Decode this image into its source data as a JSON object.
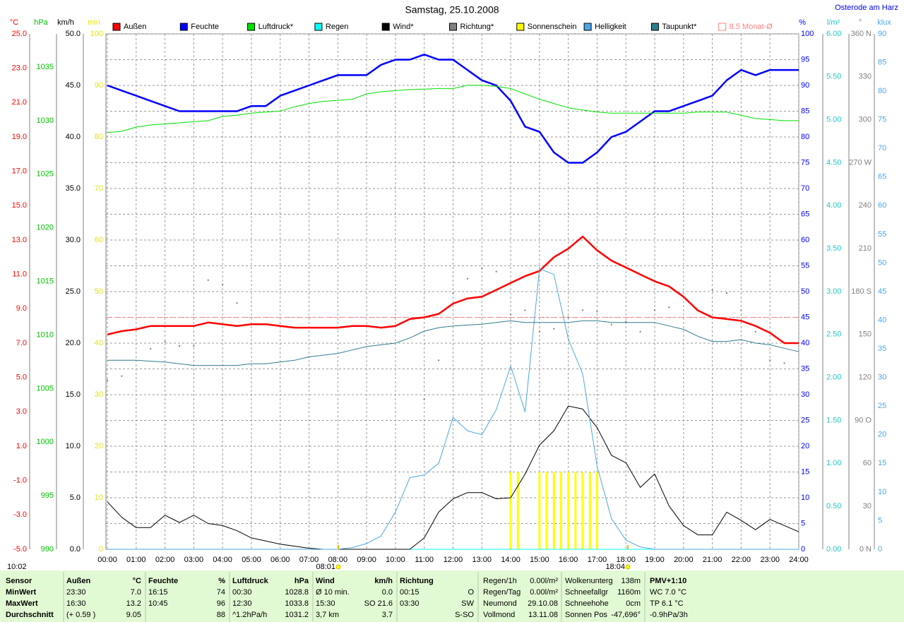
{
  "chart_data": {
    "type": "line",
    "title": "Samstag, 25.10.2008",
    "location": "Osterode am Harz",
    "day_length": "10:02",
    "x": [
      0,
      0.5,
      1,
      1.5,
      2,
      2.5,
      3,
      3.5,
      4,
      4.5,
      5,
      5.5,
      6,
      6.5,
      7,
      7.5,
      8,
      8.5,
      9,
      9.5,
      10,
      10.5,
      11,
      11.5,
      12,
      12.5,
      13,
      13.5,
      14,
      14.5,
      15,
      15.5,
      16,
      16.5,
      17,
      17.5,
      18,
      18.5,
      19,
      19.5,
      20,
      20.5,
      21,
      21.5,
      22,
      22.5,
      23,
      23.5,
      24
    ],
    "xlim": [
      0,
      24
    ],
    "xgrid": true,
    "xticks": [
      {
        "value": 0,
        "label": "00:00"
      },
      {
        "value": 1,
        "label": "01:00"
      },
      {
        "value": 2,
        "label": "02:00"
      },
      {
        "value": 3,
        "label": "03:00"
      },
      {
        "value": 4,
        "label": "04:00"
      },
      {
        "value": 5,
        "label": "05:00"
      },
      {
        "value": 6,
        "label": "06:00"
      },
      {
        "value": 7,
        "label": "07:00"
      },
      {
        "value": 8,
        "label": "08:00"
      },
      {
        "value": 9,
        "label": "09:00"
      },
      {
        "value": 10,
        "label": "10:00"
      },
      {
        "value": 11,
        "label": "11:00"
      },
      {
        "value": 12,
        "label": "12:00"
      },
      {
        "value": 13,
        "label": "13:00"
      },
      {
        "value": 14,
        "label": "14:00"
      },
      {
        "value": 15,
        "label": "15:00"
      },
      {
        "value": 16,
        "label": "16:00"
      },
      {
        "value": 17,
        "label": "17:00"
      },
      {
        "value": 18,
        "label": "18:00"
      },
      {
        "value": 19,
        "label": "19:00"
      },
      {
        "value": 20,
        "label": "20:00"
      },
      {
        "value": 21,
        "label": "21:00"
      },
      {
        "value": 22,
        "label": "22:00"
      },
      {
        "value": 23,
        "label": "23:00"
      },
      {
        "value": 24,
        "label": "24:00"
      }
    ],
    "axes": [
      {
        "unit": "°C",
        "color": "#ff0000",
        "lim": [
          -5,
          25
        ],
        "ticks": [
          {
            "value": -5,
            "label": "-5.0"
          },
          {
            "value": -3,
            "label": "-3.0"
          },
          {
            "value": -1,
            "label": "-1.0"
          },
          {
            "value": 1,
            "label": "1.0"
          },
          {
            "value": 3,
            "label": "3.0"
          },
          {
            "value": 5,
            "label": "5.0"
          },
          {
            "value": 7,
            "label": "7.0"
          },
          {
            "value": 9,
            "label": "9.0"
          },
          {
            "value": 11,
            "label": "11.0"
          },
          {
            "value": 13,
            "label": "13.0"
          },
          {
            "value": 15,
            "label": "15.0"
          },
          {
            "value": 17,
            "label": "17.0"
          },
          {
            "value": 19,
            "label": "19.0"
          },
          {
            "value": 21,
            "label": "21.0"
          },
          {
            "value": 23,
            "label": "23.0"
          },
          {
            "value": 25,
            "label": "25.0"
          }
        ]
      },
      {
        "unit": "hPa",
        "color": "#00c000",
        "lim": [
          990,
          1038.1
        ],
        "ticks": [
          990,
          995,
          1000,
          1005,
          1010,
          1015,
          1020,
          1025,
          1030,
          1035
        ]
      },
      {
        "unit": "km/h",
        "color": "#000000",
        "lim": [
          0,
          50
        ],
        "ticks": [
          {
            "value": 0,
            "label": "0.0"
          },
          {
            "value": 5,
            "label": "5.0"
          },
          {
            "value": 10,
            "label": "10.0"
          },
          {
            "value": 15,
            "label": "15.0"
          },
          {
            "value": 20,
            "label": "20.0"
          },
          {
            "value": 25,
            "label": "25.0"
          },
          {
            "value": 30,
            "label": "30.0"
          },
          {
            "value": 35,
            "label": "35.0"
          },
          {
            "value": 40,
            "label": "40.0"
          },
          {
            "value": 45,
            "label": "45.0"
          },
          {
            "value": 50,
            "label": "50.0"
          }
        ]
      },
      {
        "unit": "min",
        "color": "#e6e600",
        "lim": [
          0,
          100
        ],
        "ticks": [
          0,
          10,
          20,
          30,
          40,
          50,
          60,
          70,
          80,
          90,
          100
        ]
      },
      {
        "unit": "%",
        "color": "#0000ff",
        "lim": [
          0,
          100
        ],
        "grid": true,
        "ticks": [
          0,
          5,
          10,
          15,
          20,
          25,
          30,
          35,
          40,
          45,
          50,
          55,
          60,
          65,
          70,
          75,
          80,
          85,
          90,
          95,
          100
        ]
      },
      {
        "unit": "l/m²",
        "color": "#20c8c8",
        "lim": [
          0,
          6
        ],
        "ticks": [
          {
            "value": 0,
            "label": "0.00"
          },
          {
            "value": 0.5,
            "label": "0.50"
          },
          {
            "value": 1,
            "label": "1.00"
          },
          {
            "value": 1.5,
            "label": "1.50"
          },
          {
            "value": 2,
            "label": "2.00"
          },
          {
            "value": 2.5,
            "label": "2.50"
          },
          {
            "value": 3,
            "label": "3.00"
          },
          {
            "value": 3.5,
            "label": "3.50"
          },
          {
            "value": 4,
            "label": "4.00"
          },
          {
            "value": 4.5,
            "label": "4.50"
          },
          {
            "value": 5,
            "label": "5.00"
          },
          {
            "value": 5.5,
            "label": "5.50"
          },
          {
            "value": 6,
            "label": "6.00"
          }
        ]
      },
      {
        "unit": "°",
        "color": "#808080",
        "lim": [
          0,
          360
        ],
        "ticks": [
          {
            "value": 0,
            "label": "0 N"
          },
          30,
          60,
          {
            "value": 90,
            "label": "90 O"
          },
          120,
          150,
          {
            "value": 180,
            "label": "180 S"
          },
          210,
          240,
          {
            "value": 270,
            "label": "270 W"
          },
          300,
          330,
          {
            "value": 360,
            "label": "360 N"
          }
        ]
      },
      {
        "unit": "klux",
        "color": "#4da6e8",
        "lim": [
          0,
          90
        ],
        "ticks": [
          0,
          5,
          10,
          15,
          20,
          25,
          30,
          35,
          40,
          45,
          50,
          55,
          60,
          65,
          70,
          75,
          80,
          85,
          90
        ]
      }
    ],
    "series": [
      {
        "name": "Außen",
        "type": "line",
        "axis": "°C",
        "color": "#ff0000",
        "width": 2.5,
        "values": [
          7.5,
          7.7,
          7.8,
          8.0,
          8.0,
          8.0,
          8.0,
          8.2,
          8.1,
          8.0,
          8.1,
          8.1,
          8.0,
          7.9,
          7.9,
          7.9,
          7.9,
          8.0,
          8.0,
          7.9,
          8.0,
          8.4,
          8.5,
          8.7,
          9.3,
          9.6,
          9.7,
          10.1,
          10.5,
          10.9,
          11.2,
          12.0,
          12.5,
          13.2,
          12.4,
          11.8,
          11.4,
          11.0,
          10.6,
          10.3,
          9.7,
          8.9,
          8.5,
          8.4,
          8.3,
          8.0,
          7.6,
          7.0,
          7.0
        ]
      },
      {
        "name": "Feuchte",
        "type": "line",
        "axis": "%",
        "color": "#0000ff",
        "width": 2.5,
        "values": [
          90,
          89,
          88,
          87,
          86,
          85,
          85,
          85,
          85,
          85,
          86,
          86,
          88,
          89,
          90,
          91,
          92,
          92,
          92,
          94,
          95,
          95,
          96,
          95,
          95,
          93,
          91,
          90,
          87,
          82,
          81,
          77,
          75,
          75,
          77,
          80,
          81,
          83,
          85,
          85,
          86,
          87,
          88,
          91,
          93,
          92,
          93,
          93,
          93
        ]
      },
      {
        "name": "Luftdruck*",
        "type": "line",
        "axis": "hPa",
        "color": "#00e000",
        "width": 1,
        "values": [
          1028.9,
          1029.0,
          1029.4,
          1029.6,
          1029.7,
          1029.8,
          1029.9,
          1030.0,
          1030.4,
          1030.5,
          1030.7,
          1030.8,
          1030.9,
          1031.3,
          1031.6,
          1031.8,
          1031.9,
          1032.0,
          1032.5,
          1032.7,
          1032.8,
          1032.9,
          1032.95,
          1033.0,
          1033.0,
          1033.3,
          1033.3,
          1033.2,
          1033.0,
          1032.5,
          1032.0,
          1031.6,
          1031.2,
          1031.0,
          1030.8,
          1030.7,
          1030.7,
          1030.7,
          1030.7,
          1030.7,
          1030.7,
          1030.8,
          1030.8,
          1030.8,
          1030.5,
          1030.2,
          1030.1,
          1030.0,
          1030.0
        ]
      },
      {
        "name": "Regen",
        "type": "line",
        "axis": "l/m²",
        "color": "#00ffff",
        "width": 1,
        "values": [
          0,
          0,
          0,
          0,
          0,
          0,
          0,
          0,
          0,
          0,
          0,
          0,
          0,
          0,
          0,
          0,
          0,
          0,
          0,
          0,
          0,
          0,
          0,
          0,
          0,
          0,
          0,
          0,
          0,
          0,
          0,
          0,
          0,
          0,
          0,
          0,
          0,
          0,
          0,
          0,
          0,
          0,
          0,
          0,
          0,
          0,
          0,
          0,
          0
        ]
      },
      {
        "name": "Wind*",
        "type": "line",
        "axis": "km/h",
        "color": "#000000",
        "width": 1,
        "values": [
          4.6,
          3.1,
          2.1,
          2.1,
          3.3,
          2.6,
          3.3,
          2.5,
          2.3,
          1.8,
          1.1,
          0.8,
          0.5,
          0.3,
          0.1,
          0,
          0,
          0,
          0,
          0,
          0,
          0,
          1.1,
          3.6,
          4.9,
          5.5,
          5.5,
          4.9,
          5.0,
          7.3,
          10.1,
          11.5,
          13.9,
          13.6,
          11.8,
          9.1,
          8.4,
          6.0,
          7.3,
          4.2,
          2.3,
          1.4,
          1.4,
          3.6,
          2.8,
          1.9,
          2.9,
          2.3,
          1.7
        ]
      },
      {
        "name": "Richtung*",
        "type": "dots",
        "axis": "°",
        "color": "#808080",
        "values": [
          118,
          121,
          null,
          140,
          145,
          142,
          142,
          188,
          185,
          172,
          null,
          null,
          null,
          null,
          null,
          null,
          null,
          null,
          null,
          null,
          null,
          null,
          105,
          132,
          179,
          189,
          196,
          194,
          164,
          167,
          152,
          154,
          162,
          167,
          166,
          157,
          159,
          152,
          167,
          169,
          null,
          null,
          181,
          179,
          167,
          152,
          132,
          130,
          null
        ]
      },
      {
        "name": "Sonnenschein",
        "type": "bars",
        "axis": "min",
        "color": "#ffff00",
        "x": [
          14,
          14.25,
          15,
          15.25,
          15.5,
          15.75,
          16,
          16.25,
          16.5,
          16.75,
          17
        ],
        "values": [
          15,
          15,
          15,
          15,
          15,
          15,
          15,
          15,
          15,
          15,
          15
        ]
      },
      {
        "name": "Helligkeit",
        "type": "line",
        "axis": "klux",
        "color": "#4da6e8",
        "width": 1,
        "values": [
          0,
          0,
          0,
          0,
          0,
          0,
          0,
          0,
          0,
          0,
          0,
          0,
          0,
          0,
          0,
          0,
          0,
          0.3,
          1,
          2.3,
          6.5,
          12.5,
          13,
          15,
          23,
          20.7,
          20,
          24.4,
          32,
          24,
          49,
          48,
          36.7,
          30.6,
          14.5,
          5.3,
          1.6,
          0.4,
          0,
          0,
          0,
          0,
          0,
          0,
          0,
          0,
          0,
          0,
          0
        ]
      },
      {
        "name": "Taupunkt*",
        "type": "line",
        "axis": "°C",
        "color": "#2e7d8c",
        "width": 1,
        "values": [
          6.0,
          6.0,
          6.0,
          5.95,
          5.9,
          5.8,
          5.7,
          5.7,
          5.7,
          5.7,
          5.8,
          5.8,
          5.9,
          6.0,
          6.2,
          6.3,
          6.4,
          6.6,
          6.8,
          6.9,
          7.0,
          7.3,
          7.7,
          7.9,
          8.0,
          8.05,
          8.1,
          8.2,
          8.3,
          8.2,
          8.2,
          8.2,
          8.2,
          8.3,
          8.3,
          8.2,
          8.2,
          8.2,
          8.2,
          8.0,
          7.8,
          7.4,
          7.1,
          7.1,
          7.2,
          7.0,
          6.9,
          6.7,
          6.5
        ]
      },
      {
        "name": "8.5 Monat-Ø",
        "type": "hline",
        "axis": "°C",
        "color": "#ff8080",
        "value": 8.5
      }
    ],
    "annotations": [
      {
        "label": "08:01",
        "value": 8.017
      },
      {
        "label": "18:04",
        "value": 18.067
      }
    ]
  },
  "table": {
    "row_labels": [
      "Sensor",
      "MinWert",
      "MaxWert",
      "Durchschnitt"
    ],
    "groups": [
      {
        "header": [
          "Außen",
          "°C"
        ],
        "rows": [
          [
            "23:30",
            "7.0"
          ],
          [
            "16:30",
            "13.2"
          ],
          [
            "(+ 0.59 )",
            "9.05"
          ]
        ]
      },
      {
        "header": [
          "Feuchte",
          "%"
        ],
        "rows": [
          [
            "16:15",
            "74"
          ],
          [
            "10:45",
            "96"
          ],
          [
            null,
            "88"
          ]
        ]
      },
      {
        "header": [
          "Luftdruck",
          "hPa"
        ],
        "rows": [
          [
            "00:30",
            "1028.8"
          ],
          [
            "12:30",
            "1033.8"
          ],
          [
            "^1.2hPa/h",
            "1031.2"
          ]
        ]
      },
      {
        "header": [
          "Wind",
          "km/h"
        ],
        "rows": [
          [
            "Ø 10 min.",
            "0.0"
          ],
          [
            "15:30",
            "SO 21.6"
          ],
          [
            "3,7 km",
            "3.7"
          ]
        ]
      },
      {
        "header": [
          "Richtung",
          null
        ],
        "rows": [
          [
            "00:15",
            "O"
          ],
          [
            "03:30",
            "SW"
          ],
          [
            null,
            "S-SO"
          ]
        ]
      }
    ],
    "info": [
      [
        [
          "Regen/1h",
          "0.00l/m²"
        ],
        [
          "Regen/Tag",
          "0.00l/m²"
        ],
        [
          "Neumond",
          "29.10.08"
        ],
        [
          "Vollmond",
          "13.11.08"
        ]
      ],
      [
        [
          "Wolkenunterg",
          "138m"
        ],
        [
          "Schneefallgr",
          "1160m"
        ],
        [
          "Schneehohe",
          "0cm"
        ],
        [
          "Sonnen Pos",
          "-47,696°"
        ]
      ]
    ],
    "pmv": [
      "PMV+1:10",
      "WC 7.0 °C",
      "TP 6.1 °C",
      "-0.9hPa/3h"
    ]
  }
}
